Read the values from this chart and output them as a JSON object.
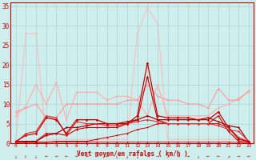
{
  "xlabel": "Vent moyen/en rafales ( km/h )",
  "xlim": [
    0,
    23
  ],
  "ylim": [
    0,
    35
  ],
  "yticks": [
    0,
    5,
    10,
    15,
    20,
    25,
    30,
    35
  ],
  "xticks": [
    0,
    1,
    2,
    3,
    4,
    5,
    6,
    7,
    8,
    9,
    10,
    11,
    12,
    13,
    14,
    15,
    16,
    17,
    18,
    19,
    20,
    21,
    22,
    23
  ],
  "background_color": "#ceeeed",
  "grid_color": "#aad4d4",
  "series": [
    {
      "note": "light pink - big spike at 13-14",
      "x": [
        0,
        1,
        2,
        3,
        4,
        5,
        6,
        7,
        8,
        9,
        10,
        11,
        12,
        13,
        14,
        15,
        16,
        17,
        18,
        19,
        20,
        21,
        22,
        23
      ],
      "y": [
        0.5,
        28,
        28,
        1,
        1,
        1,
        1,
        1,
        1,
        1,
        1,
        1,
        28,
        34.5,
        30.5,
        1,
        1,
        1,
        1,
        1,
        1,
        1,
        1,
        1
      ],
      "color": "#ffbbbb",
      "lw": 0.8,
      "marker": "D",
      "ms": 1.5,
      "zorder": 1
    },
    {
      "note": "medium pink upper - wavy ~10-15",
      "x": [
        0,
        1,
        2,
        3,
        4,
        5,
        6,
        7,
        8,
        9,
        10,
        11,
        12,
        13,
        14,
        15,
        16,
        17,
        18,
        19,
        20,
        21,
        22,
        23
      ],
      "y": [
        7,
        9.5,
        15,
        10,
        15.5,
        6,
        13,
        13,
        13,
        11,
        12,
        12,
        11,
        7,
        15,
        7,
        7,
        7,
        7,
        7,
        9,
        10,
        11.5,
        13
      ],
      "color": "#ffaaaa",
      "lw": 0.8,
      "marker": "D",
      "ms": 1.5,
      "zorder": 2
    },
    {
      "note": "medium pink lower - around 8-11",
      "x": [
        0,
        1,
        2,
        3,
        4,
        5,
        6,
        7,
        8,
        9,
        10,
        11,
        12,
        13,
        14,
        15,
        16,
        17,
        18,
        19,
        20,
        21,
        22,
        23
      ],
      "y": [
        8,
        9,
        10,
        6.5,
        6.5,
        10,
        10,
        10,
        10,
        10,
        10,
        11,
        11,
        15,
        12,
        11,
        11,
        10,
        10,
        9,
        14,
        11,
        11,
        13.5
      ],
      "color": "#ff9999",
      "lw": 0.8,
      "marker": "D",
      "ms": 1.5,
      "zorder": 2
    },
    {
      "note": "dark red main - spike at 13 ~20",
      "x": [
        0,
        1,
        2,
        3,
        4,
        5,
        6,
        7,
        8,
        9,
        10,
        11,
        12,
        13,
        14,
        15,
        16,
        17,
        18,
        19,
        20,
        21,
        22,
        23
      ],
      "y": [
        0.5,
        2,
        2.5,
        6.5,
        6,
        2.5,
        6,
        6,
        6,
        5,
        5,
        5,
        7,
        20.5,
        7,
        6.5,
        6.5,
        6.5,
        6,
        6,
        8,
        4,
        1,
        0.5
      ],
      "color": "#cc0000",
      "lw": 0.9,
      "marker": "D",
      "ms": 1.8,
      "zorder": 5
    },
    {
      "note": "dark red lower 1",
      "x": [
        0,
        1,
        2,
        3,
        4,
        5,
        6,
        7,
        8,
        9,
        10,
        11,
        12,
        13,
        14,
        15,
        16,
        17,
        18,
        19,
        20,
        21,
        22,
        23
      ],
      "y": [
        0.5,
        0.5,
        0.5,
        2.5,
        2.5,
        2,
        3.5,
        4,
        4,
        4,
        4,
        5,
        6,
        17,
        6,
        5,
        5,
        5,
        5,
        5,
        7,
        3,
        0.5,
        0.3
      ],
      "color": "#cc0000",
      "lw": 0.8,
      "marker": "D",
      "ms": 1.5,
      "zorder": 4
    },
    {
      "note": "dark red lower 2",
      "x": [
        0,
        1,
        2,
        3,
        4,
        5,
        6,
        7,
        8,
        9,
        10,
        11,
        12,
        13,
        14,
        15,
        16,
        17,
        18,
        19,
        20,
        21,
        22,
        23
      ],
      "y": [
        0.5,
        0.5,
        0.5,
        2,
        2.5,
        4,
        4,
        4.5,
        5,
        5,
        5,
        5.5,
        6,
        7,
        6,
        6,
        6,
        6,
        6,
        6.5,
        5.5,
        4.5,
        4,
        0.3
      ],
      "color": "#aa0000",
      "lw": 0.9,
      "marker": "D",
      "ms": 1.5,
      "zorder": 4
    },
    {
      "note": "dark red bottom line - near zero",
      "x": [
        0,
        1,
        2,
        3,
        4,
        5,
        6,
        7,
        8,
        9,
        10,
        11,
        12,
        13,
        14,
        15,
        16,
        17,
        18,
        19,
        20,
        21,
        22,
        23
      ],
      "y": [
        0.2,
        0.3,
        0.3,
        0.3,
        0.5,
        0.5,
        0.5,
        0.5,
        1,
        1.5,
        2,
        2.5,
        3.5,
        4,
        5,
        5,
        5,
        5,
        5,
        5,
        5,
        4,
        1.5,
        0.3
      ],
      "color": "#cc0000",
      "lw": 0.7,
      "marker": "D",
      "ms": 1.2,
      "zorder": 3
    },
    {
      "note": "another low dark red",
      "x": [
        0,
        1,
        2,
        3,
        4,
        5,
        6,
        7,
        8,
        9,
        10,
        11,
        12,
        13,
        14,
        15,
        16,
        17,
        18,
        19,
        20,
        21,
        22,
        23
      ],
      "y": [
        0.2,
        2.5,
        3,
        7,
        6.5,
        2,
        5.5,
        5,
        5,
        4.5,
        4.5,
        5,
        5.5,
        6,
        5.5,
        5,
        5,
        5,
        5,
        5,
        4.5,
        3.5,
        3,
        0.5
      ],
      "color": "#dd3333",
      "lw": 0.8,
      "marker": "D",
      "ms": 1.5,
      "zorder": 4
    },
    {
      "note": "very low flat line near zero",
      "x": [
        0,
        1,
        2,
        3,
        4,
        5,
        6,
        7,
        8,
        9,
        10,
        11,
        12,
        13,
        14,
        15,
        16,
        17,
        18,
        19,
        20,
        21,
        22,
        23
      ],
      "y": [
        0.2,
        0.2,
        0.2,
        0.2,
        0.3,
        0.3,
        0.3,
        0.3,
        0.3,
        0.3,
        0.3,
        0.3,
        0.3,
        0.3,
        0.3,
        0.3,
        0.3,
        0.3,
        0.3,
        0.3,
        0.3,
        0.3,
        0.2,
        0.2
      ],
      "color": "#cc0000",
      "lw": 0.6,
      "marker": "D",
      "ms": 1.0,
      "zorder": 3
    }
  ],
  "wind_arrows": "b,i,b,l,arr_left,arr_left,arr_left,arr_left,arr_left,arr_left,arr_down,arr_down,arr_down,arr_right,arr_right,arr_upright,arr_right,arr_right,arr_down,arr_left,arr_left",
  "arrow_symbols": [
    "↓",
    "↑",
    "↓",
    "←",
    "←",
    "←",
    "←",
    "←",
    "←",
    "←",
    "↓",
    "↓",
    "↓",
    "→",
    "→",
    "↗",
    "→",
    "→",
    "↓",
    "←",
    "←",
    "↗",
    "→",
    "←"
  ]
}
